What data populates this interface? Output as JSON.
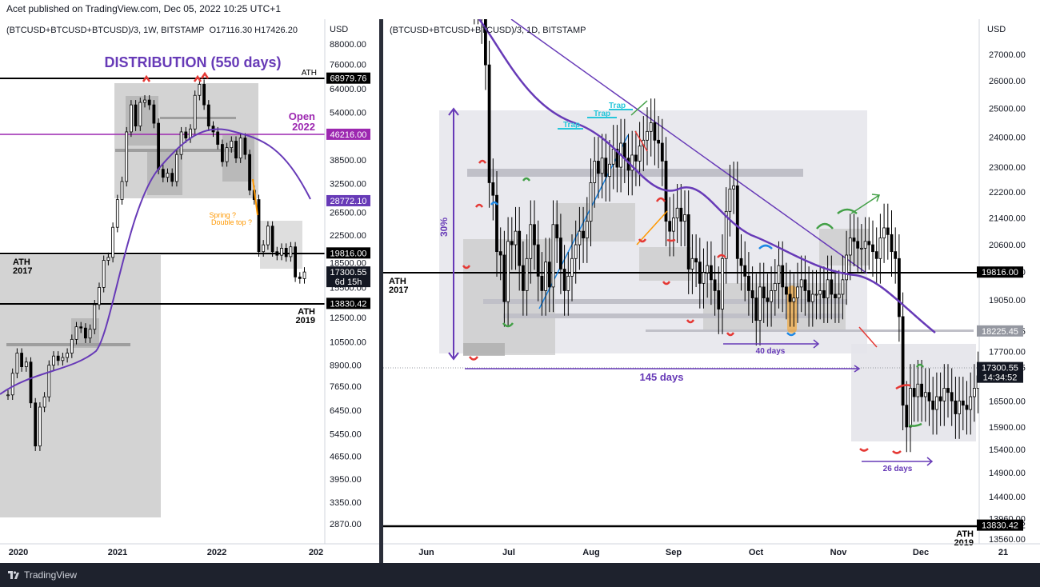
{
  "header": {
    "publisher": "Acet published on TradingView.com, Dec 05, 2022 10:25 UTC+1"
  },
  "footer": {
    "brand": "TradingView"
  },
  "chart_data": [
    {
      "type": "candlestick",
      "title": "(BTCUSD+BTCUSD+BTCUSD)/3, 1W, BITSTAMP",
      "ohlc_text": "O17116.30  H17426.20",
      "axis_unit": "USD",
      "y_ticks": [
        88000,
        76000,
        64000,
        54000,
        38500,
        32500,
        26500,
        22500,
        18500,
        15500,
        12500,
        10500,
        8900,
        7650,
        6450,
        5450,
        4650,
        3950,
        3350,
        2870
      ],
      "x_ticks": [
        "2020",
        "2021",
        "2022",
        "202"
      ],
      "price_tags": [
        {
          "value": "68979.76",
          "color": "#000000"
        },
        {
          "value": "46216.00",
          "color": "#9c27b0"
        },
        {
          "value": "28772.10",
          "color": "#673ab7"
        },
        {
          "value": "19816.00",
          "color": "#000000"
        },
        {
          "value": "17300.55",
          "color": "#131722"
        },
        {
          "value": "6d 15h",
          "color": "#131722"
        },
        {
          "value": "13830.42",
          "color": "#000000"
        }
      ],
      "annotations": {
        "distribution": "DISTRIBUTION (550 days)",
        "ath_line": "ATH",
        "open_2022": [
          "Open",
          "2022"
        ],
        "ath_2017": [
          "ATH",
          "2017"
        ],
        "ath_2019": [
          "ATH",
          "2019"
        ],
        "spring": [
          "Spring ?",
          "Double top ?"
        ]
      },
      "closes": [
        7200,
        8400,
        9700,
        8800,
        9100,
        6800,
        5000,
        6600,
        7100,
        8900,
        9500,
        9200,
        9400,
        9700,
        10700,
        11700,
        11600,
        10800,
        11500,
        13700,
        15500,
        18800,
        19200,
        23800,
        29000,
        33000,
        47000,
        57000,
        49000,
        58000,
        59000,
        57000,
        50000,
        36000,
        34000,
        35000,
        33000,
        40000,
        47000,
        45000,
        48000,
        61000,
        66000,
        57000,
        49000,
        47000,
        43000,
        38000,
        42000,
        44000,
        39000,
        45000,
        40000,
        31000,
        29000,
        20000,
        21000,
        24000,
        20000,
        19500,
        20500,
        19300,
        20700,
        16700,
        16500,
        17300
      ]
    },
    {
      "type": "candlestick",
      "title": "(BTCUSD+BTCUSD+BTCUSD)/3, 1D, BITSTAMP",
      "axis_unit": "USD",
      "y_ticks": [
        27000,
        26000,
        25000,
        24000,
        23000,
        22200,
        21400,
        20600,
        19816,
        19050,
        18225.45,
        17700,
        17300.55,
        16500,
        15900,
        15400,
        14900,
        14400,
        13960,
        13830.42,
        13560
      ],
      "x_ticks": [
        "Jun",
        "Jul",
        "Aug",
        "Sep",
        "Oct",
        "Nov",
        "Dec",
        "21"
      ],
      "price_tags": [
        {
          "value": "19816.00",
          "color": "#000000"
        },
        {
          "value": "18225.45",
          "color": "#9598a1"
        },
        {
          "value": "17300.55",
          "color": "#131722"
        },
        {
          "value": "14:34:52",
          "color": "#131722"
        },
        {
          "value": "13830.42",
          "color": "#000000"
        }
      ],
      "annotations": {
        "pct": "30%",
        "ath_2017": [
          "ATH",
          "2017"
        ],
        "ath_2019": [
          "ATH",
          "2019"
        ],
        "days_145": "145 days",
        "days_40": "40 days",
        "days_26": "26 days",
        "trap1": "Trap",
        "trap2": "Trap",
        "trap3": "Trap"
      },
      "closes": [
        29800,
        30100,
        31400,
        29900,
        29200,
        30200,
        28400,
        26600,
        22500,
        22100,
        20400,
        20300,
        19000,
        20700,
        20600,
        21000,
        20000,
        19300,
        20200,
        21200,
        20600,
        19700,
        19300,
        20100,
        19400,
        21200,
        20800,
        19900,
        19300,
        19700,
        20200,
        20600,
        21000,
        20800,
        21300,
        22500,
        23200,
        22800,
        23300,
        22700,
        23100,
        23600,
        23000,
        23800,
        23300,
        22900,
        23400,
        23200,
        23700,
        23900,
        24200,
        24500,
        23900,
        23800,
        23200,
        21300,
        21000,
        21400,
        21700,
        21300,
        21500,
        19900,
        20200,
        20100,
        19500,
        19800,
        20000,
        19600,
        19300,
        18800,
        20200,
        21600,
        22300,
        22400,
        20200,
        20000,
        19700,
        19300,
        19100,
        18500,
        19400,
        19100,
        19000,
        19300,
        19500,
        20000,
        19400,
        19200,
        19000,
        19100,
        19400,
        19600,
        19300,
        19000,
        19200,
        19200,
        19300,
        19100,
        19600,
        19200,
        19100,
        19200,
        19600,
        20300,
        20800,
        20700,
        20500,
        20500,
        20700,
        20600,
        20400,
        20200,
        20800,
        21100,
        20900,
        20400,
        20200,
        18600,
        16400,
        15900,
        16800,
        16600,
        16900,
        16600,
        16700,
        16500,
        16300,
        16600,
        16500,
        16800,
        16700,
        16500,
        16200,
        16500,
        16400,
        16300,
        16600,
        16800,
        17100,
        17200,
        17000,
        17100,
        17200,
        17300
      ]
    }
  ]
}
